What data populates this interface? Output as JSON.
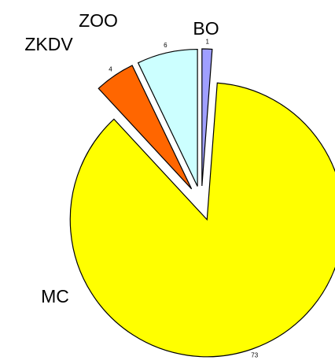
{
  "chart_data": {
    "type": "pie",
    "categories": [
      "BO",
      "MC",
      "ZKDV",
      "ZOO"
    ],
    "values": [
      1,
      73,
      4,
      6
    ],
    "colors": [
      "#9f9fff",
      "#ffff00",
      "#ff6600",
      "#ccffff"
    ]
  }
}
